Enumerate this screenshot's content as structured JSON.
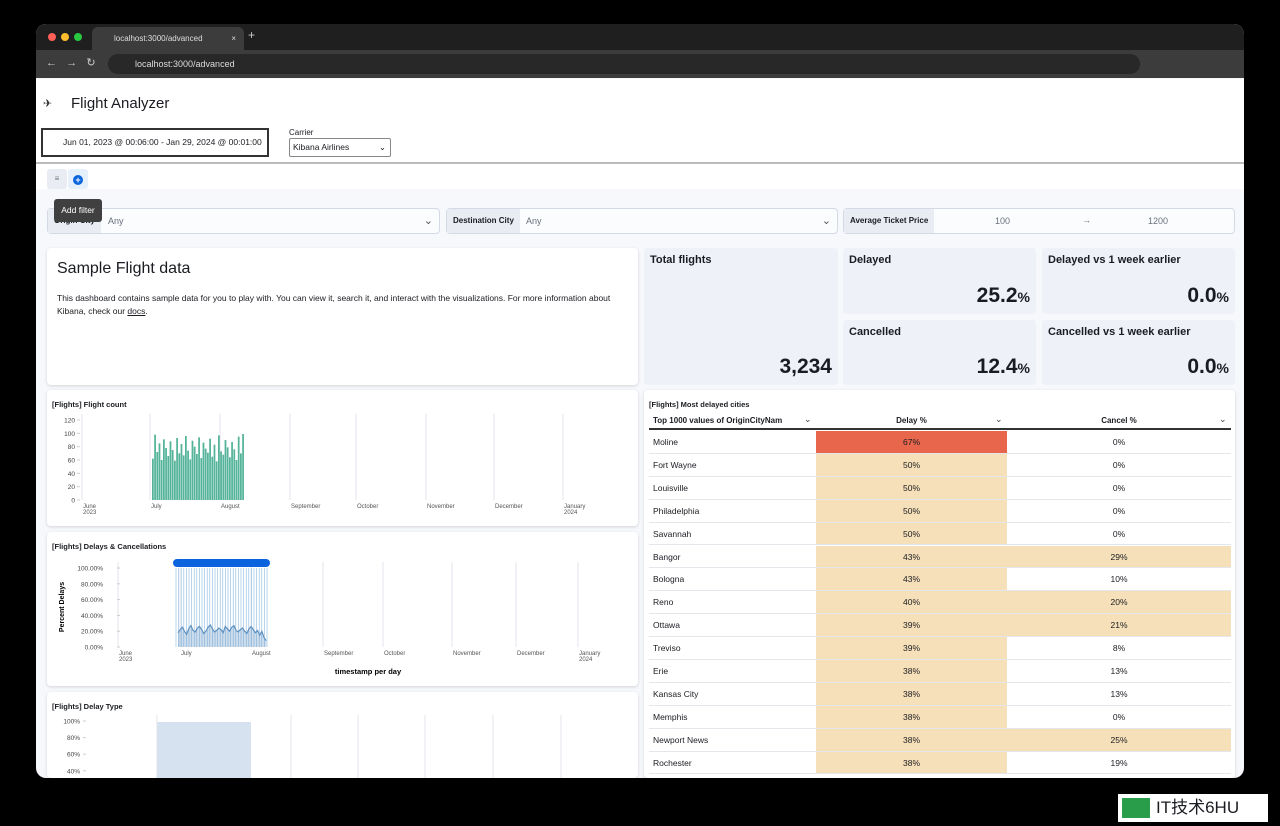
{
  "browser": {
    "tab_title": "localhost:3000/advanced",
    "new_tab": "+",
    "url": "localhost:3000/advanced"
  },
  "header": {
    "title": "Flight Analyzer"
  },
  "query": {
    "date_range": "Jun 01, 2023 @ 00:06:00 - Jan 29, 2024 @ 00:01:00",
    "carrier_label": "Carrier",
    "carrier_value": "Kibana Airlines"
  },
  "tooltip": "Add filter",
  "controls": {
    "origin_label": "Origin City",
    "origin_value": "Any",
    "destination_label": "Destination City",
    "destination_value": "Any",
    "price_label": "Average Ticket Price",
    "price_min": "100",
    "price_arrow": "→",
    "price_max": "1200"
  },
  "markdown": {
    "title": "Sample Flight data",
    "body": "This dashboard contains sample data for you to play with. You can view it, search it, and interact with the visualizations. For more information about Kibana, check our ",
    "link": "docs",
    "end": "."
  },
  "metrics": [
    {
      "label": "Total flights",
      "value": "3,234"
    },
    {
      "label": "Delayed",
      "value": "25.2",
      "unit": "%"
    },
    {
      "label": "Delayed vs 1 week earlier",
      "value": "0.0",
      "unit": "%"
    },
    {
      "label": "Cancelled",
      "value": "12.4",
      "unit": "%"
    },
    {
      "label": "Cancelled vs 1 week earlier",
      "value": "0.0",
      "unit": "%"
    }
  ],
  "charts": [
    {
      "type": "bar",
      "title": "[Flights] Flight count",
      "color": "#54b399",
      "ylim": [
        0,
        120
      ],
      "yticks": [
        0,
        20,
        40,
        60,
        80,
        100,
        120
      ],
      "xticks": [
        {
          "label": "June",
          "sub": "2023"
        },
        {
          "label": "July"
        },
        {
          "label": "August"
        },
        {
          "label": "September"
        },
        {
          "label": "October"
        },
        {
          "label": "November"
        },
        {
          "label": "December"
        },
        {
          "label": "January",
          "sub": "2024"
        }
      ],
      "values": [
        62,
        98,
        72,
        85,
        60,
        91,
        78,
        66,
        88,
        75,
        59,
        93,
        70,
        84,
        67,
        96,
        74,
        61,
        89,
        80,
        69,
        94,
        63,
        86,
        77,
        71,
        92,
        65,
        83,
        58,
        97,
        73,
        68,
        90,
        79,
        64,
        87,
        76,
        60,
        95,
        70,
        99
      ]
    },
    {
      "type": "line",
      "title": "[Flights] Delays & Cancellations",
      "color": "#6092c0",
      "ylabel": "Percent Delays",
      "xlabel": "timestamp per day",
      "ylim": [
        0,
        100
      ],
      "yticks": [
        {
          "value": 0,
          "label": "0.00%"
        },
        {
          "value": 20,
          "label": "20.00%"
        },
        {
          "value": 40,
          "label": "40.00%"
        },
        {
          "value": 60,
          "label": "60.00%"
        },
        {
          "value": 80,
          "label": "80.00%"
        },
        {
          "value": 100,
          "label": "100.00%"
        }
      ],
      "xticks": [
        {
          "label": "June",
          "sub": "2023"
        },
        {
          "label": "July"
        },
        {
          "label": "August"
        },
        {
          "label": "September"
        },
        {
          "label": "October"
        },
        {
          "label": "November"
        },
        {
          "label": "December"
        },
        {
          "label": "January",
          "sub": "2024"
        }
      ],
      "values": [
        18,
        22,
        25,
        20,
        16,
        23,
        27,
        21,
        19,
        24,
        26,
        22,
        17,
        20,
        25,
        28,
        23,
        19,
        21,
        24,
        22,
        18,
        26,
        23,
        20,
        25,
        27,
        21,
        19,
        22,
        24,
        20,
        17,
        23,
        26,
        22,
        18,
        21,
        15,
        20,
        12,
        8
      ]
    },
    {
      "type": "area",
      "title": "[Flights] Delay Type",
      "color": "#d6e2f0",
      "ylim": [
        0,
        100
      ],
      "yticks": [
        {
          "value": 100,
          "label": "100%"
        },
        {
          "value": 80,
          "label": "80%"
        },
        {
          "value": 60,
          "label": "60%"
        },
        {
          "value": 40,
          "label": "40%"
        }
      ]
    }
  ],
  "table": {
    "title": "[Flights] Most delayed cities",
    "columns": [
      "Top 1000 values of OriginCityNam",
      "Delay %",
      "Cancel %"
    ],
    "rows": [
      {
        "city": "Moline",
        "delay": "67%",
        "cancel": "0%",
        "delay_bg": "#e7664c",
        "cancel_bg": "#ffffff"
      },
      {
        "city": "Fort Wayne",
        "delay": "50%",
        "cancel": "0%",
        "delay_bg": "#f6e0b9",
        "cancel_bg": "#ffffff"
      },
      {
        "city": "Louisville",
        "delay": "50%",
        "cancel": "0%",
        "delay_bg": "#f6e0b9",
        "cancel_bg": "#ffffff"
      },
      {
        "city": "Philadelphia",
        "delay": "50%",
        "cancel": "0%",
        "delay_bg": "#f6e0b9",
        "cancel_bg": "#ffffff"
      },
      {
        "city": "Savannah",
        "delay": "50%",
        "cancel": "0%",
        "delay_bg": "#f6e0b9",
        "cancel_bg": "#ffffff"
      },
      {
        "city": "Bangor",
        "delay": "43%",
        "cancel": "29%",
        "delay_bg": "#f6e0b9",
        "cancel_bg": "#f6e0b9"
      },
      {
        "city": "Bologna",
        "delay": "43%",
        "cancel": "10%",
        "delay_bg": "#f6e0b9",
        "cancel_bg": "#ffffff"
      },
      {
        "city": "Reno",
        "delay": "40%",
        "cancel": "20%",
        "delay_bg": "#f6e0b9",
        "cancel_bg": "#f6e0b9"
      },
      {
        "city": "Ottawa",
        "delay": "39%",
        "cancel": "21%",
        "delay_bg": "#f6e0b9",
        "cancel_bg": "#f6e0b9"
      },
      {
        "city": "Treviso",
        "delay": "39%",
        "cancel": "8%",
        "delay_bg": "#f6e0b9",
        "cancel_bg": "#ffffff"
      },
      {
        "city": "Erie",
        "delay": "38%",
        "cancel": "13%",
        "delay_bg": "#f6e0b9",
        "cancel_bg": "#ffffff"
      },
      {
        "city": "Kansas City",
        "delay": "38%",
        "cancel": "13%",
        "delay_bg": "#f6e0b9",
        "cancel_bg": "#ffffff"
      },
      {
        "city": "Memphis",
        "delay": "38%",
        "cancel": "0%",
        "delay_bg": "#f6e0b9",
        "cancel_bg": "#ffffff"
      },
      {
        "city": "Newport News",
        "delay": "38%",
        "cancel": "25%",
        "delay_bg": "#f6e0b9",
        "cancel_bg": "#f6e0b9"
      },
      {
        "city": "Rochester",
        "delay": "38%",
        "cancel": "19%",
        "delay_bg": "#f6e0b9",
        "cancel_bg": "#ffffff"
      }
    ]
  },
  "watermark": "IT技术6HU"
}
